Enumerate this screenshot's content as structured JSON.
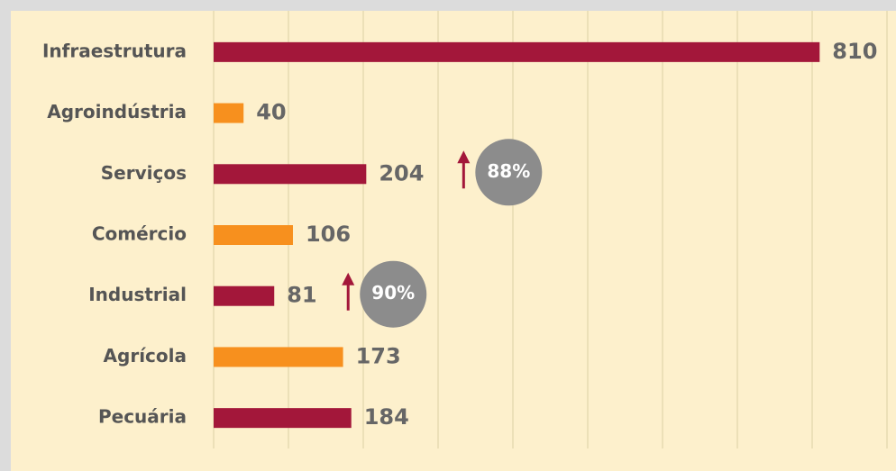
{
  "chart_data": {
    "type": "bar",
    "orientation": "horizontal",
    "categories": [
      "Infraestrutura",
      "Agroindústria",
      "Serviços",
      "Comércio",
      "Industrial",
      "Agrícola",
      "Pecuária"
    ],
    "values": [
      810,
      40,
      204,
      106,
      81,
      173,
      184
    ],
    "colors": [
      "#a3173a",
      "#f7901e",
      "#a3173a",
      "#f7901e",
      "#a3173a",
      "#f7901e",
      "#a3173a"
    ],
    "xlim": [
      0,
      900
    ],
    "xticks": [
      0,
      100,
      200,
      300,
      400,
      500,
      600,
      700,
      800,
      900
    ],
    "grid": true,
    "annotations": [
      {
        "text": "88%",
        "arrow_color": "#a3173a",
        "badge_color": "#8c8c8c"
      },
      {
        "text": "90%",
        "arrow_color": "#a3173a",
        "badge_color": "#8c8c8c"
      }
    ]
  }
}
